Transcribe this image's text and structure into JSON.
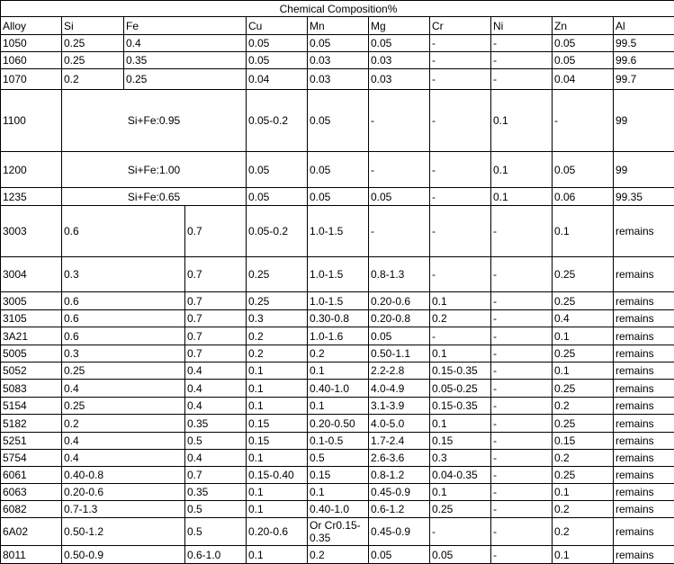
{
  "title": "Chemical Composition%",
  "headers": {
    "alloy": "Alloy",
    "si": "Si",
    "fe": "Fe",
    "cu": "Cu",
    "mn": "Mn",
    "mg": "Mg",
    "cr": "Cr",
    "ni": "Ni",
    "zn": "Zn",
    "al": "Al"
  },
  "rows": [
    {
      "alloy": "1050",
      "si": "0.25",
      "fe": "0.4",
      "cu": "0.05",
      "mn": "0.05",
      "mg": "0.05",
      "cr": "-",
      "ni": "-",
      "zn": "0.05",
      "al": "99.5"
    },
    {
      "alloy": "1060",
      "si": "0.25",
      "fe": "0.35",
      "cu": "0.05",
      "mn": "0.03",
      "mg": "0.03",
      "cr": "-",
      "ni": "-",
      "zn": "0.05",
      "al": "99.6"
    },
    {
      "alloy": "1070",
      "si": "0.2",
      "fe": "0.25",
      "cu": "0.04",
      "mn": "0.03",
      "mg": "0.03",
      "cr": "-",
      "ni": "-",
      "zn": "0.04",
      "al": "99.7"
    },
    {
      "alloy": "1100",
      "si_fe": "Si+Fe:0.95",
      "cu": "0.05-0.2",
      "mn": "0.05",
      "mg": "-",
      "cr": "-",
      "ni": "0.1",
      "zn": "-",
      "al": "99"
    },
    {
      "alloy": "1200",
      "si_fe": "Si+Fe:1.00",
      "cu": "0.05",
      "mn": "0.05",
      "mg": "-",
      "cr": "-",
      "ni": "0.1",
      "zn": "0.05",
      "al": "99"
    },
    {
      "alloy": "1235",
      "si_fe": "Si+Fe:0.65",
      "cu": "0.05",
      "mn": "0.05",
      "mg": "0.05",
      "cr": "-",
      "ni": "0.1",
      "zn": "0.06",
      "al": "99.35"
    },
    {
      "alloy": "3003",
      "si": "0.6",
      "fe": "0.7",
      "cu": "0.05-0.2",
      "mn": "1.0-1.5",
      "mg": "-",
      "cr": "-",
      "ni": "-",
      "zn": "0.1",
      "al": "remains"
    },
    {
      "alloy": "3004",
      "si": "0.3",
      "fe": "0.7",
      "cu": "0.25",
      "mn": "1.0-1.5",
      "mg": "0.8-1.3",
      "cr": "-",
      "ni": "-",
      "zn": "0.25",
      "al": "remains"
    },
    {
      "alloy": "3005",
      "si": "0.6",
      "fe": "0.7",
      "cu": "0.25",
      "mn": "1.0-1.5",
      "mg": "0.20-0.6",
      "cr": "0.1",
      "ni": "-",
      "zn": "0.25",
      "al": "remains"
    },
    {
      "alloy": "3105",
      "si": "0.6",
      "fe": "0.7",
      "cu": "0.3",
      "mn": "0.30-0.8",
      "mg": "0.20-0.8",
      "cr": "0.2",
      "ni": "-",
      "zn": "0.4",
      "al": "remains"
    },
    {
      "alloy": "3A21",
      "si": "0.6",
      "fe": "0.7",
      "cu": "0.2",
      "mn": "1.0-1.6",
      "mg": "0.05",
      "cr": "-",
      "ni": "-",
      "zn": "0.1",
      "al": "remains"
    },
    {
      "alloy": "5005",
      "si": "0.3",
      "fe": "0.7",
      "cu": "0.2",
      "mn": "0.2",
      "mg": "0.50-1.1",
      "cr": "0.1",
      "ni": "-",
      "zn": "0.25",
      "al": "remains"
    },
    {
      "alloy": "5052",
      "si": "0.25",
      "fe": "0.4",
      "cu": "0.1",
      "mn": "0.1",
      "mg": "2.2-2.8",
      "cr": "0.15-0.35",
      "ni": "-",
      "zn": "0.1",
      "al": "remains"
    },
    {
      "alloy": "5083",
      "si": "0.4",
      "fe": "0.4",
      "cu": "0.1",
      "mn": "0.40-1.0",
      "mg": "4.0-4.9",
      "cr": "0.05-0.25",
      "ni": "-",
      "zn": "0.25",
      "al": "remains"
    },
    {
      "alloy": "5154",
      "si": "0.25",
      "fe": "0.4",
      "cu": "0.1",
      "mn": "0.1",
      "mg": "3.1-3.9",
      "cr": "0.15-0.35",
      "ni": "-",
      "zn": "0.2",
      "al": "remains"
    },
    {
      "alloy": "5182",
      "si": "0.2",
      "fe": "0.35",
      "cu": "0.15",
      "mn": "0.20-0.50",
      "mg": "4.0-5.0",
      "cr": "0.1",
      "ni": "-",
      "zn": "0.25",
      "al": "remains"
    },
    {
      "alloy": "5251",
      "si": "0.4",
      "fe": "0.5",
      "cu": "0.15",
      "mn": "0.1-0.5",
      "mg": "1.7-2.4",
      "cr": "0.15",
      "ni": "-",
      "zn": "0.15",
      "al": "remains"
    },
    {
      "alloy": "5754",
      "si": "0.4",
      "fe": "0.4",
      "cu": "0.1",
      "mn": "0.5",
      "mg": "2.6-3.6",
      "cr": "0.3",
      "ni": "-",
      "zn": "0.2",
      "al": "remains"
    },
    {
      "alloy": "6061",
      "si": "0.40-0.8",
      "fe": "0.7",
      "cu": "0.15-0.40",
      "mn": "0.15",
      "mg": "0.8-1.2",
      "cr": "0.04-0.35",
      "ni": "-",
      "zn": "0.25",
      "al": "remains"
    },
    {
      "alloy": "6063",
      "si": "0.20-0.6",
      "fe": "0.35",
      "cu": "0.1",
      "mn": "0.1",
      "mg": "0.45-0.9",
      "cr": "0.1",
      "ni": "-",
      "zn": "0.1",
      "al": "remains"
    },
    {
      "alloy": "6082",
      "si": "0.7-1.3",
      "fe": "0.5",
      "cu": "0.1",
      "mn": "0.40-1.0",
      "mg": "0.6-1.2",
      "cr": "0.25",
      "ni": "-",
      "zn": "0.2",
      "al": "remains"
    },
    {
      "alloy": "6A02",
      "si": "0.50-1.2",
      "fe": "0.5",
      "cu": "0.20-0.6",
      "mn": "Or Cr0.15-0.35",
      "mg": "0.45-0.9",
      "cr": "-",
      "ni": "-",
      "zn": "0.2",
      "al": "remains"
    },
    {
      "alloy": "8011",
      "si": "0.50-0.9",
      "fe": "0.6-1.0",
      "cu": "0.1",
      "mn": "0.2",
      "mg": "0.05",
      "cr": "0.05",
      "ni": "-",
      "zn": "0.1",
      "al": "remains"
    }
  ]
}
